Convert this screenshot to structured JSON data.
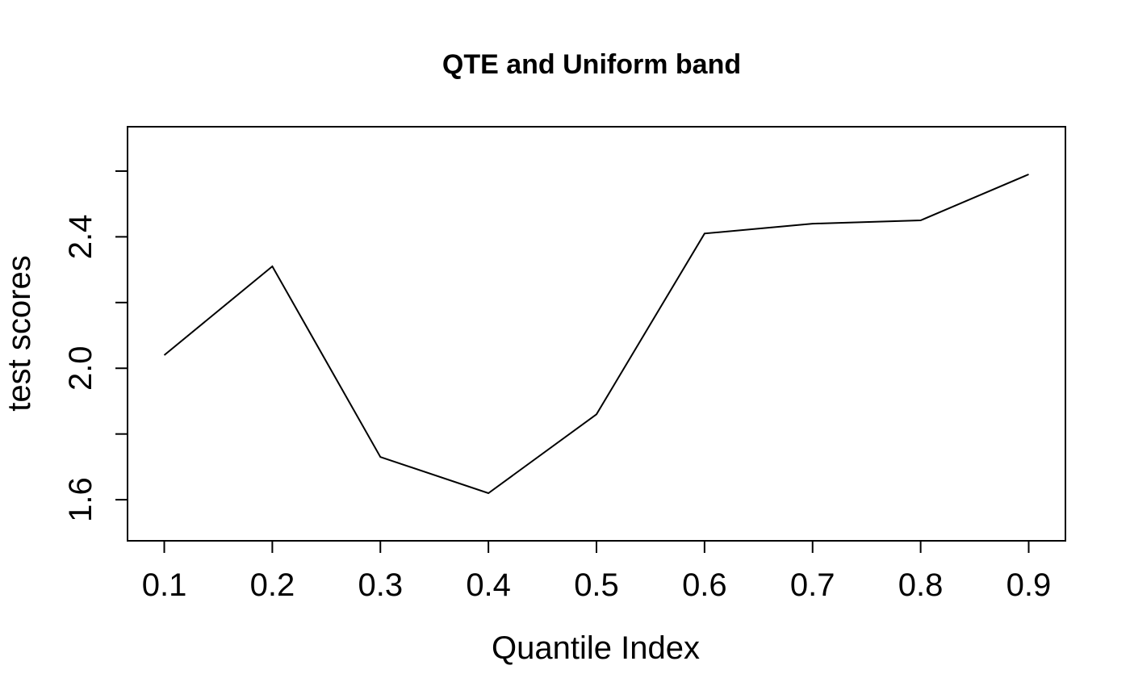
{
  "chart_data": {
    "type": "line",
    "title": "QTE and Uniform band",
    "xlabel": "Quantile Index",
    "ylabel": "test scores",
    "x": [
      0.1,
      0.2,
      0.3,
      0.4,
      0.5,
      0.6,
      0.7,
      0.8,
      0.9
    ],
    "series": [
      {
        "values": [
          2.04,
          2.31,
          1.73,
          1.62,
          1.86,
          2.41,
          2.44,
          2.45,
          2.59
        ]
      }
    ],
    "xlim": [
      0.066,
      0.934
    ],
    "ylim": [
      1.475,
      2.735
    ],
    "xticks": [
      0.1,
      0.2,
      0.3,
      0.4,
      0.5,
      0.6,
      0.7,
      0.8,
      0.9
    ],
    "xtick_labels": [
      "0.1",
      "0.2",
      "0.3",
      "0.4",
      "0.5",
      "0.6",
      "0.7",
      "0.8",
      "0.9"
    ],
    "yticks": [
      1.6,
      1.8,
      2.0,
      2.2,
      2.4,
      2.6
    ],
    "ytick_labels": [
      "1.6",
      "",
      "2.0",
      "",
      "2.4",
      ""
    ],
    "grid": false,
    "legend": "none",
    "line_color": "#000000"
  }
}
